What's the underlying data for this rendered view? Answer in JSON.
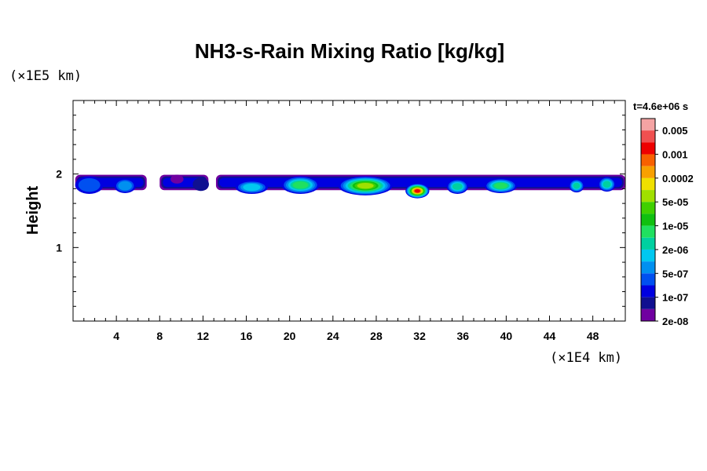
{
  "chart_data": {
    "type": "heatmap",
    "title": "NH3-s-Rain Mixing Ratio [kg/kg]",
    "ylabel": "Height",
    "x_unit_label": "(×1E4 km)",
    "y_unit_label": "(×1E5 km)",
    "time_label": "t=4.6e+06 s",
    "xlim": [
      0,
      51
    ],
    "ylim": [
      0,
      3
    ],
    "x_ticks": [
      4,
      8,
      12,
      16,
      20,
      24,
      28,
      32,
      36,
      40,
      44,
      48
    ],
    "y_ticks": [
      1,
      2
    ],
    "colorbar": {
      "labels": [
        "0.005",
        "0.001",
        "0.0002",
        "5e-05",
        "1e-05",
        "2e-06",
        "5e-07",
        "1e-07",
        "2e-08"
      ],
      "colors": [
        "#f4a3a3",
        "#f05050",
        "#ee0000",
        "#f86000",
        "#f8a000",
        "#f0e000",
        "#a0e000",
        "#40d000",
        "#10c010",
        "#20e060",
        "#00d0a0",
        "#00c8f0",
        "#0090f0",
        "#0050f0",
        "#0000e0",
        "#101090",
        "#7000a0"
      ]
    },
    "cloud_base_y": 1.8,
    "clouds": [
      {
        "x": 1.5,
        "w": 2.6,
        "y": 1.85,
        "h": 0.12,
        "level": 13
      },
      {
        "x": 4.8,
        "w": 2.0,
        "y": 1.84,
        "h": 0.1,
        "level": 12
      },
      {
        "x": 9.6,
        "w": 1.2,
        "y": 1.93,
        "h": 0.06,
        "level": 16
      },
      {
        "x": 11.8,
        "w": 1.5,
        "y": 1.86,
        "h": 0.09,
        "level": 15
      },
      {
        "x": 16.5,
        "w": 3.0,
        "y": 1.82,
        "h": 0.09,
        "level": 11
      },
      {
        "x": 21.0,
        "w": 3.5,
        "y": 1.85,
        "h": 0.12,
        "level": 9
      },
      {
        "x": 27.0,
        "w": 5.0,
        "y": 1.84,
        "h": 0.13,
        "level": 6
      },
      {
        "x": 31.8,
        "w": 2.2,
        "y": 1.77,
        "h": 0.1,
        "level": 2
      },
      {
        "x": 35.5,
        "w": 2.0,
        "y": 1.83,
        "h": 0.1,
        "level": 10
      },
      {
        "x": 39.5,
        "w": 3.0,
        "y": 1.84,
        "h": 0.1,
        "level": 9
      },
      {
        "x": 46.5,
        "w": 1.4,
        "y": 1.84,
        "h": 0.09,
        "level": 10
      },
      {
        "x": 49.3,
        "w": 1.6,
        "y": 1.86,
        "h": 0.1,
        "level": 10
      }
    ]
  }
}
